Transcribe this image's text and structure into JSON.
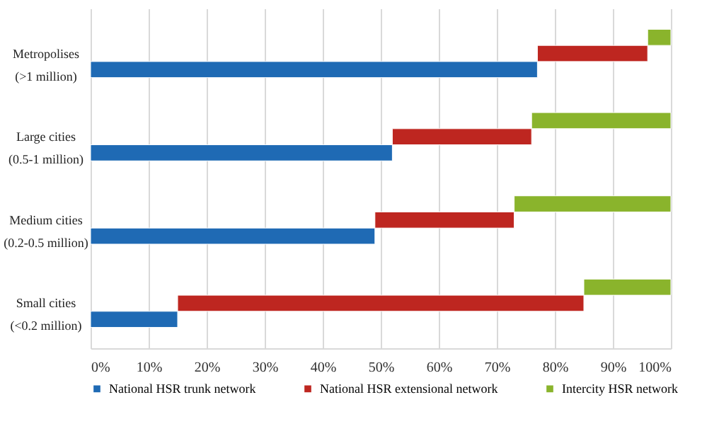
{
  "chart_data": {
    "type": "bar",
    "orientation": "horizontal",
    "stacked": true,
    "categories": [
      "Metropolises\n(>1 million)",
      "Large cities\n(0.5-1 million)",
      "Medium cities\n(0.2-0.5 million)",
      "Small cities\n(<0.2 million)"
    ],
    "series": [
      {
        "name": "National HSR trunk network",
        "color": "#1f6ab4",
        "values": [
          77,
          52,
          49,
          15
        ]
      },
      {
        "name": "National HSR extensional network",
        "color": "#be2620",
        "values": [
          19,
          24,
          24,
          70
        ]
      },
      {
        "name": "Intercity HSR network",
        "color": "#8ab42c",
        "values": [
          4,
          24,
          27,
          15
        ]
      }
    ],
    "xlim": [
      0,
      100
    ],
    "xticks": [
      {
        "value": 0,
        "label": "0%"
      },
      {
        "value": 10,
        "label": "10%"
      },
      {
        "value": 20,
        "label": "20%"
      },
      {
        "value": 30,
        "label": "30%"
      },
      {
        "value": 40,
        "label": "40%"
      },
      {
        "value": 50,
        "label": "50%"
      },
      {
        "value": 60,
        "label": "60%"
      },
      {
        "value": 70,
        "label": "70%"
      },
      {
        "value": 80,
        "label": "80%"
      },
      {
        "value": 90,
        "label": "90%"
      },
      {
        "value": 100,
        "label": "100%"
      }
    ],
    "grid": "x",
    "legend": "bottom"
  }
}
